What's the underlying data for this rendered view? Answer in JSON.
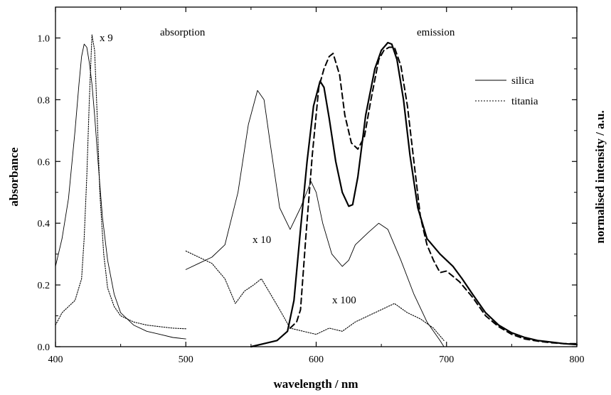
{
  "chart_data": {
    "type": "line",
    "xlabel": "wavelength / nm",
    "ylabel_left": "absorbance",
    "ylabel_right": "normalised intensity / a.u.",
    "xlim": [
      400,
      800
    ],
    "ylim": [
      0,
      1.1
    ],
    "x_ticks": [
      "400",
      "500",
      "600",
      "700",
      "800"
    ],
    "y_ticks": [
      "0.0",
      "0.2",
      "0.4",
      "0.6",
      "0.8",
      "1.0"
    ],
    "grid": false,
    "legend_position": "top-right",
    "legend": [
      {
        "label": "silica",
        "style": "solid"
      },
      {
        "label": "titania",
        "style": "dotted"
      }
    ],
    "annotations": {
      "absorption": "absorption",
      "emission": "emission",
      "x9": "x 9",
      "x10": "x 10",
      "x100": "x 100"
    },
    "series": [
      {
        "name": "silica",
        "group": "absorption",
        "style": "thin-solid",
        "x": [
          400,
          405,
          410,
          415,
          418,
          420,
          422,
          424,
          426,
          428,
          430,
          433,
          436,
          440,
          445,
          450,
          460,
          470,
          480,
          490,
          500
        ],
        "y": [
          0.26,
          0.35,
          0.48,
          0.7,
          0.85,
          0.94,
          0.98,
          0.97,
          0.92,
          0.85,
          0.75,
          0.58,
          0.42,
          0.28,
          0.17,
          0.11,
          0.07,
          0.05,
          0.04,
          0.03,
          0.025
        ]
      },
      {
        "name": "titania",
        "group": "absorption",
        "style": "dotted",
        "x": [
          400,
          405,
          410,
          415,
          420,
          422,
          424,
          426,
          428,
          430,
          432,
          434,
          437,
          440,
          445,
          450,
          460,
          470,
          480,
          490,
          500
        ],
        "y": [
          0.07,
          0.11,
          0.13,
          0.15,
          0.22,
          0.35,
          0.55,
          0.8,
          1.01,
          0.96,
          0.75,
          0.5,
          0.3,
          0.19,
          0.13,
          0.1,
          0.08,
          0.07,
          0.065,
          0.06,
          0.058
        ]
      },
      {
        "name": "silica x 10",
        "group": "absorption",
        "style": "thin-solid",
        "x": [
          500,
          510,
          520,
          530,
          540,
          548,
          555,
          560,
          565,
          572,
          580,
          588,
          596,
          600,
          605,
          612,
          620,
          625,
          630,
          640,
          648,
          655,
          665,
          675,
          685,
          695,
          698
        ],
        "y": [
          0.25,
          0.27,
          0.29,
          0.33,
          0.5,
          0.72,
          0.83,
          0.8,
          0.65,
          0.45,
          0.38,
          0.45,
          0.535,
          0.5,
          0.4,
          0.3,
          0.26,
          0.28,
          0.33,
          0.37,
          0.4,
          0.38,
          0.28,
          0.17,
          0.08,
          0.02,
          0.0
        ]
      },
      {
        "name": "titania x 100",
        "group": "absorption",
        "style": "dotted",
        "x": [
          500,
          510,
          520,
          530,
          538,
          545,
          552,
          558,
          565,
          572,
          580,
          590,
          600,
          610,
          620,
          630,
          640,
          650,
          660,
          670,
          680,
          690,
          698
        ],
        "y": [
          0.31,
          0.29,
          0.27,
          0.22,
          0.14,
          0.18,
          0.2,
          0.22,
          0.17,
          0.12,
          0.06,
          0.05,
          0.04,
          0.06,
          0.05,
          0.08,
          0.1,
          0.12,
          0.14,
          0.11,
          0.09,
          0.06,
          0.02
        ]
      },
      {
        "name": "silica emission",
        "group": "emission",
        "style": "thick-solid",
        "x": [
          550,
          560,
          570,
          578,
          583,
          588,
          593,
          598,
          603,
          606,
          610,
          615,
          620,
          625,
          628,
          632,
          638,
          645,
          650,
          655,
          658,
          662,
          667,
          672,
          678,
          685,
          695,
          705,
          712,
          720,
          730,
          740,
          750,
          760,
          770,
          780,
          790,
          800
        ],
        "y": [
          0.0,
          0.01,
          0.02,
          0.05,
          0.15,
          0.38,
          0.6,
          0.78,
          0.86,
          0.84,
          0.74,
          0.6,
          0.5,
          0.455,
          0.46,
          0.55,
          0.75,
          0.9,
          0.96,
          0.985,
          0.98,
          0.93,
          0.8,
          0.62,
          0.45,
          0.35,
          0.3,
          0.26,
          0.22,
          0.17,
          0.11,
          0.07,
          0.045,
          0.03,
          0.02,
          0.015,
          0.01,
          0.007
        ]
      },
      {
        "name": "titania emission",
        "group": "emission",
        "style": "dashed",
        "x": [
          580,
          585,
          588,
          592,
          597,
          602,
          606,
          610,
          613,
          618,
          622,
          627,
          632,
          637,
          642,
          648,
          652,
          656,
          660,
          665,
          670,
          675,
          680,
          685,
          690,
          695,
          700,
          710,
          720,
          730,
          740,
          750,
          760,
          770,
          780,
          790,
          800
        ],
        "y": [
          0.06,
          0.08,
          0.12,
          0.35,
          0.62,
          0.84,
          0.9,
          0.94,
          0.95,
          0.88,
          0.75,
          0.66,
          0.64,
          0.68,
          0.8,
          0.93,
          0.96,
          0.97,
          0.97,
          0.91,
          0.78,
          0.6,
          0.42,
          0.33,
          0.28,
          0.24,
          0.245,
          0.21,
          0.16,
          0.1,
          0.065,
          0.04,
          0.025,
          0.018,
          0.013,
          0.01,
          0.01
        ]
      }
    ]
  }
}
